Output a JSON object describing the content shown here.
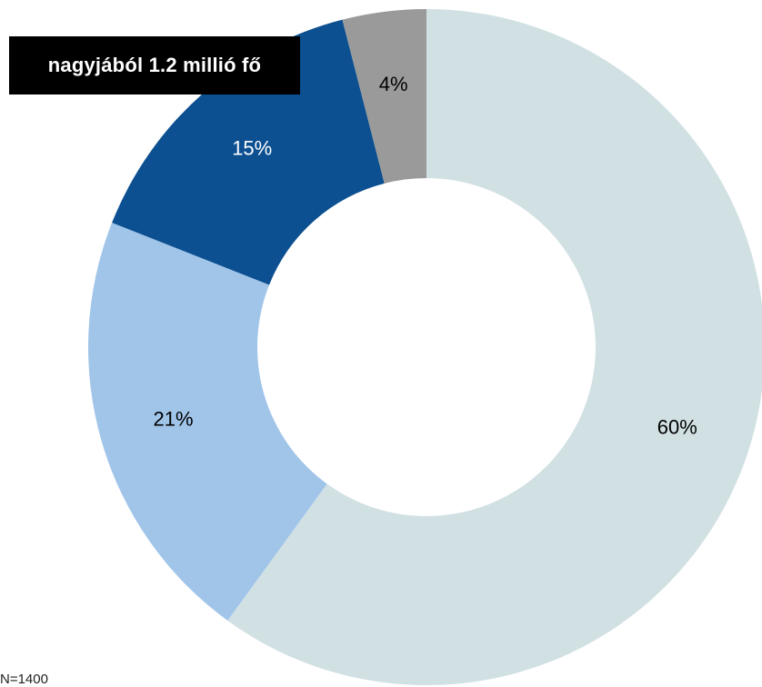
{
  "callout": {
    "text": "nagyjából 1.2 millió fő"
  },
  "footnote": {
    "text": "N=1400"
  },
  "chart_data": {
    "type": "pie",
    "donut": true,
    "start_angle_deg": 0,
    "direction": "clockwise",
    "slices": [
      {
        "label": "60%",
        "value": 60,
        "color": "#d1e0e3",
        "label_color": "#000000"
      },
      {
        "label": "21%",
        "value": 21,
        "color": "#a1c5e9",
        "label_color": "#000000"
      },
      {
        "label": "15%",
        "value": 15,
        "color": "#0c5091",
        "label_color": "#ffffff"
      },
      {
        "label": "4%",
        "value": 4,
        "color": "#9a9a9a",
        "label_color": "#000000"
      }
    ]
  }
}
